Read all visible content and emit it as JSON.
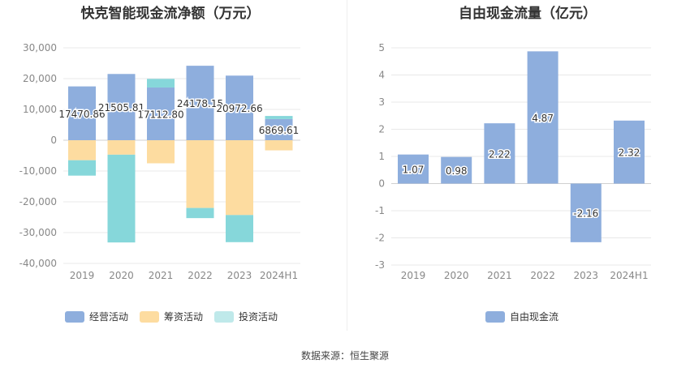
{
  "chart_data": [
    {
      "type": "bar",
      "stacked": true,
      "title": "快克智能现金流净额（万元）",
      "categories": [
        "2019",
        "2020",
        "2021",
        "2022",
        "2023",
        "2024H1"
      ],
      "series": [
        {
          "name": "经营活动",
          "color": "#8eaedd",
          "values": [
            17470.86,
            21505.81,
            17112.8,
            24178.15,
            20972.66,
            6869.61
          ]
        },
        {
          "name": "筹资活动",
          "color": "#fddca0",
          "values": [
            -6500,
            -4700,
            -7500,
            -22000,
            -24300,
            -3300
          ]
        },
        {
          "name": "投资活动",
          "color": "#86d7da",
          "values": [
            -5000,
            -28500,
            2800,
            -3300,
            -8800,
            1000
          ]
        }
      ],
      "data_labels": [
        "17470.86",
        "21505.81",
        "17112.80",
        "24178.15",
        "20972.66",
        "6869.61"
      ],
      "yticks": [
        "30,000",
        "20,000",
        "10,000",
        "0",
        "-10,000",
        "-20,000",
        "-30,000",
        "-40,000"
      ],
      "ylim": [
        -40000,
        30000
      ],
      "grid": true,
      "legend_position": "bottom"
    },
    {
      "type": "bar",
      "title": "自由现金流量（亿元）",
      "categories": [
        "2019",
        "2020",
        "2021",
        "2022",
        "2023",
        "2024H1"
      ],
      "series": [
        {
          "name": "自由现金流",
          "color": "#8eaedd",
          "values": [
            1.07,
            0.98,
            2.22,
            4.87,
            -2.16,
            2.32
          ]
        }
      ],
      "data_labels": [
        "1.07",
        "0.98",
        "2.22",
        "4.87",
        "-2.16",
        "2.32"
      ],
      "yticks": [
        "5",
        "4",
        "3",
        "2",
        "1",
        "0",
        "-1",
        "-2",
        "-3"
      ],
      "ylim": [
        -3,
        5
      ],
      "grid": true,
      "legend_position": "bottom"
    }
  ],
  "footer": {
    "source": "数据来源：恒生聚源"
  }
}
